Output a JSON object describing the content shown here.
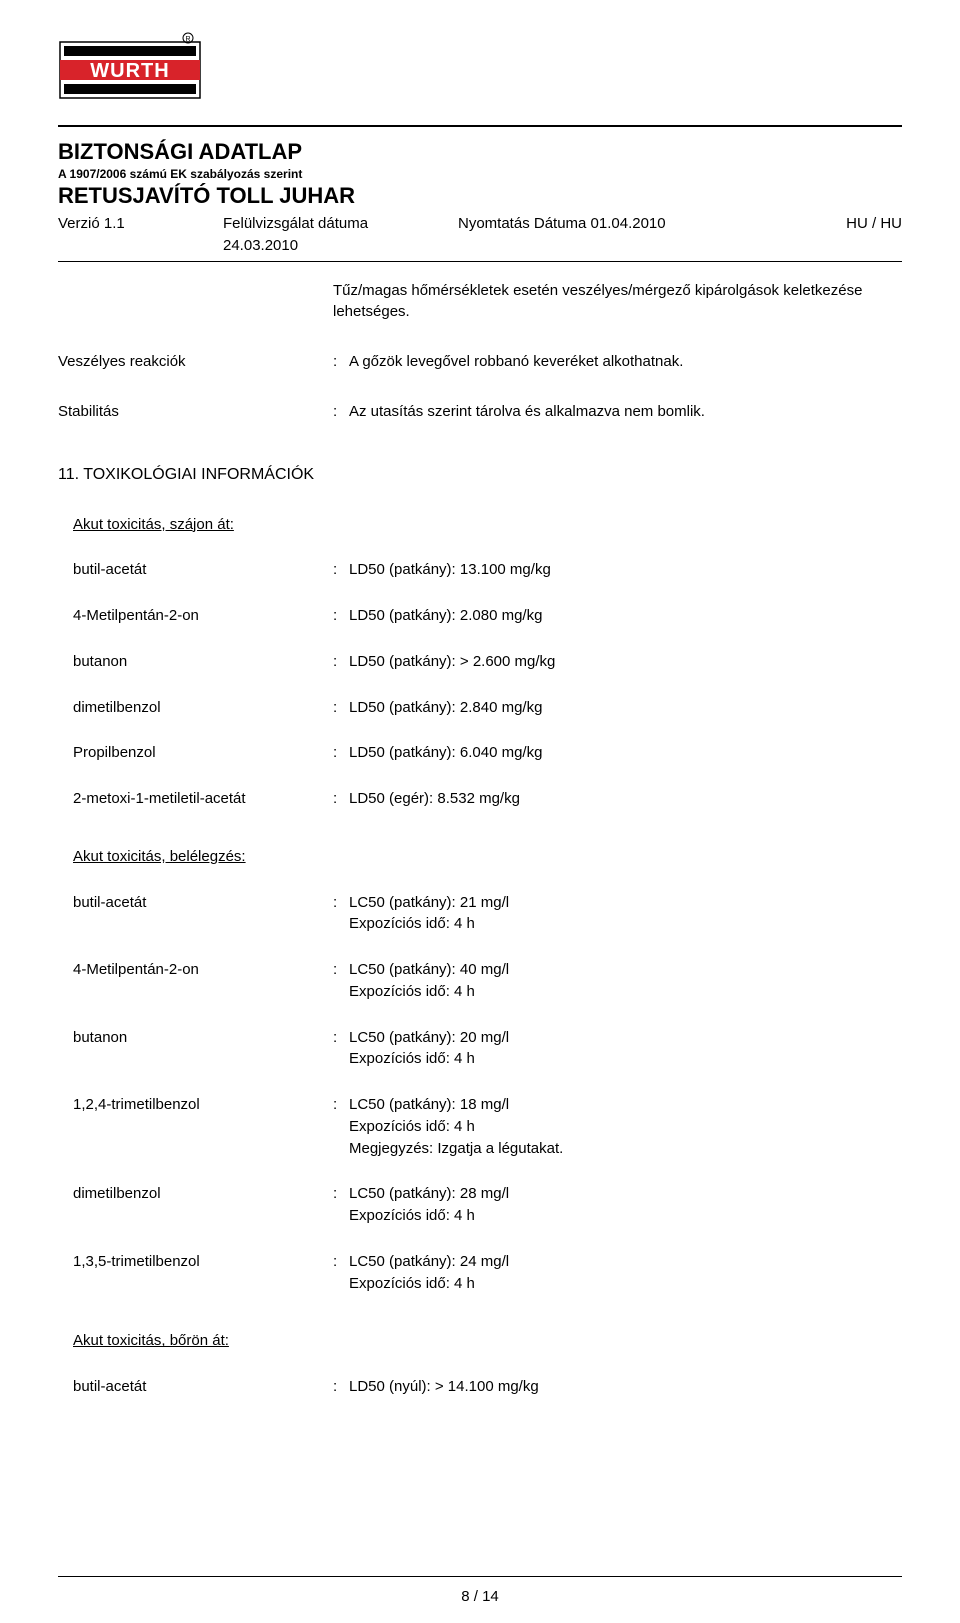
{
  "header": {
    "doc_title": "BIZTONSÁGI ADATLAP",
    "regulation": "A 1907/2006 számú EK szabályozás szerint",
    "product_name": "RETUSJAVÍTÓ TOLL JUHAR",
    "version_label": "Verzió 1.1",
    "revision_label": "Felülvizsgálat dátuma",
    "revision_date": "24.03.2010",
    "print_label": "Nyomtatás Dátuma 01.04.2010",
    "locale": "HU / HU"
  },
  "top_note": "Tűz/magas hőmérsékletek esetén veszélyes/mérgező kipárolgások keletkezése lehetséges.",
  "reactions": {
    "label": "Veszélyes reakciók",
    "value": "A gőzök levegővel robbanó keveréket alkothatnak."
  },
  "stability": {
    "label": "Stabilitás",
    "value": "Az utasítás szerint tárolva és alkalmazva nem bomlik."
  },
  "section11": {
    "heading": "11. TOXIKOLÓGIAI INFORMÁCIÓK",
    "oral_heading": "Akut toxicitás, szájon át:",
    "inhalation_heading": "Akut toxicitás, belélegzés:",
    "dermal_heading": "Akut toxicitás, bőrön át:",
    "oral": [
      {
        "name": "butil-acetát",
        "value": "LD50 (patkány): 13.100 mg/kg"
      },
      {
        "name": "4-Metilpentán-2-on",
        "value": "LD50 (patkány): 2.080 mg/kg"
      },
      {
        "name": "butanon",
        "value": "LD50 (patkány): > 2.600 mg/kg"
      },
      {
        "name": "dimetilbenzol",
        "value": "LD50 (patkány): 2.840 mg/kg"
      },
      {
        "name": "Propilbenzol",
        "value": "LD50 (patkány): 6.040 mg/kg"
      },
      {
        "name": "2-metoxi-1-metiletil-acetát",
        "value": "LD50 (egér): 8.532 mg/kg"
      }
    ],
    "inhalation": [
      {
        "name": "butil-acetát",
        "lines": [
          "LC50 (patkány): 21 mg/l",
          "Expozíciós idő: 4 h"
        ]
      },
      {
        "name": "4-Metilpentán-2-on",
        "lines": [
          "LC50 (patkány): 40 mg/l",
          "Expozíciós idő: 4 h"
        ]
      },
      {
        "name": "butanon",
        "lines": [
          "LC50 (patkány): 20 mg/l",
          "Expozíciós idő: 4 h"
        ]
      },
      {
        "name": "1,2,4-trimetilbenzol",
        "lines": [
          "LC50 (patkány): 18 mg/l",
          "Expozíciós idő: 4 h",
          "Megjegyzés: Izgatja a légutakat."
        ]
      },
      {
        "name": "dimetilbenzol",
        "lines": [
          "LC50 (patkány): 28 mg/l",
          "Expozíciós idő: 4 h"
        ]
      },
      {
        "name": "1,3,5-trimetilbenzol",
        "lines": [
          "LC50 (patkány): 24 mg/l",
          "Expozíciós idő: 4 h"
        ]
      }
    ],
    "dermal": [
      {
        "name": "butil-acetát",
        "value": "LD50 (nyúl): > 14.100 mg/kg"
      }
    ]
  },
  "page_number": "8 / 14",
  "logo_colors": {
    "red": "#d8232a",
    "black": "#000000",
    "white": "#ffffff"
  }
}
